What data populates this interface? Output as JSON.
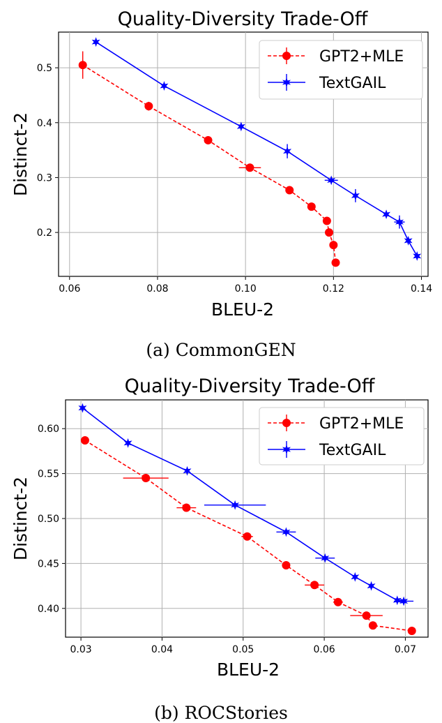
{
  "chart_data": [
    {
      "type": "line",
      "title": "Quality-Diversity Trade-Off",
      "xlabel": "BLEU-2",
      "ylabel": "Distinct-2",
      "caption": "(a) CommonGEN",
      "xlim": [
        0.0575,
        0.1415
      ],
      "ylim": [
        0.12,
        0.565
      ],
      "xticks": [
        0.06,
        0.08,
        0.1,
        0.12,
        0.14
      ],
      "xtick_labels": [
        "0.06",
        "0.08",
        "0.10",
        "0.12",
        "0.14"
      ],
      "yticks": [
        0.2,
        0.3,
        0.4,
        0.5
      ],
      "ytick_labels": [
        "0.2",
        "0.3",
        "0.4",
        "0.5"
      ],
      "grid": true,
      "legend_position": "top-right",
      "series": [
        {
          "name": "GPT2+MLE",
          "color": "#ff0000",
          "marker": "circle",
          "line_style": "dashed",
          "x": [
            0.063,
            0.078,
            0.0915,
            0.101,
            0.11,
            0.115,
            0.1185,
            0.119,
            0.12,
            0.1205
          ],
          "y": [
            0.505,
            0.43,
            0.368,
            0.318,
            0.277,
            0.247,
            0.221,
            0.2,
            0.177,
            0.145
          ],
          "xerr": [
            0.0,
            0.0,
            0.0,
            0.0025,
            0.0,
            0.0,
            0.0,
            0.0,
            0.0,
            0.0
          ],
          "yerr": [
            0.025,
            0.008,
            0.006,
            0.0,
            0.0,
            0.0,
            0.0,
            0.0,
            0.0,
            0.0
          ]
        },
        {
          "name": "TextGAIL",
          "color": "#0000ff",
          "marker": "star",
          "line_style": "solid",
          "x": [
            0.066,
            0.0815,
            0.099,
            0.1095,
            0.1195,
            0.125,
            0.132,
            0.135,
            0.137,
            0.139
          ],
          "y": [
            0.547,
            0.467,
            0.393,
            0.348,
            0.295,
            0.267,
            0.233,
            0.219,
            0.185,
            0.157
          ],
          "xerr": [
            0.0,
            0.0,
            0.0,
            0.0,
            0.0015,
            0.0,
            0.0,
            0.0012,
            0.0,
            0.0
          ],
          "yerr": [
            0.0,
            0.0,
            0.0,
            0.013,
            0.0,
            0.012,
            0.0,
            0.012,
            0.0,
            0.0
          ]
        }
      ]
    },
    {
      "type": "line",
      "title": "Quality-Diversity Trade-Off",
      "xlabel": "BLEU-2",
      "ylabel": "Distinct-2",
      "caption": "(b) ROCStories",
      "xlim": [
        0.0281,
        0.0728
      ],
      "ylim": [
        0.368,
        0.632
      ],
      "xticks": [
        0.03,
        0.04,
        0.05,
        0.06,
        0.07
      ],
      "xtick_labels": [
        "0.03",
        "0.04",
        "0.05",
        "0.06",
        "0.07"
      ],
      "yticks": [
        0.4,
        0.45,
        0.5,
        0.55,
        0.6
      ],
      "ytick_labels": [
        "0.40",
        "0.45",
        "0.50",
        "0.55",
        "0.60"
      ],
      "grid": true,
      "legend_position": "top-right",
      "series": [
        {
          "name": "GPT2+MLE",
          "color": "#ff0000",
          "marker": "circle",
          "line_style": "dashed",
          "x": [
            0.0305,
            0.038,
            0.043,
            0.0505,
            0.0553,
            0.0588,
            0.0617,
            0.0652,
            0.066,
            0.0708
          ],
          "y": [
            0.587,
            0.545,
            0.512,
            0.48,
            0.448,
            0.426,
            0.407,
            0.392,
            0.381,
            0.375
          ],
          "xerr": [
            0.0,
            0.0028,
            0.0012,
            0.0007,
            0.0,
            0.0012,
            0.0006,
            0.002,
            0.0,
            0.0
          ],
          "yerr": [
            0.0,
            0.0,
            0.0,
            0.0,
            0.0,
            0.0,
            0.0,
            0.0,
            0.0,
            0.0
          ]
        },
        {
          "name": "TextGAIL",
          "color": "#0000ff",
          "marker": "star",
          "line_style": "solid",
          "x": [
            0.0302,
            0.0358,
            0.0431,
            0.049,
            0.0553,
            0.0601,
            0.0638,
            0.0658,
            0.069,
            0.0698
          ],
          "y": [
            0.623,
            0.584,
            0.553,
            0.515,
            0.485,
            0.456,
            0.435,
            0.425,
            0.409,
            0.408
          ],
          "xerr": [
            0.0,
            0.0,
            0.0,
            0.0038,
            0.0012,
            0.0012,
            0.0,
            0.0,
            0.0,
            0.0012
          ],
          "yerr": [
            0.0,
            0.0,
            0.0,
            0.0,
            0.0,
            0.0,
            0.0,
            0.0,
            0.0,
            0.0
          ]
        }
      ]
    }
  ]
}
